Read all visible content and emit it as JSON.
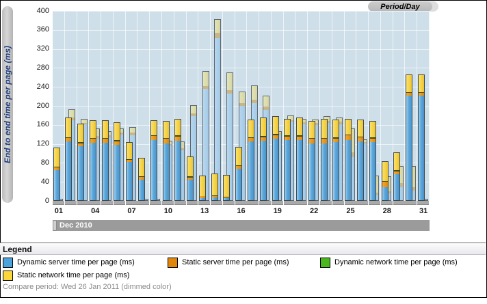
{
  "header": {
    "period_pill_label": "Period/Day"
  },
  "y_axis": {
    "title": "End to end time per page (ms)",
    "min": 0,
    "max": 400,
    "step": 40
  },
  "x_axis": {
    "tick_labels": [
      "01",
      "04",
      "07",
      "10",
      "13",
      "16",
      "19",
      "22",
      "25",
      "28",
      "31"
    ],
    "scrollbar_label": "Dec 2010"
  },
  "legend": {
    "title": "Legend",
    "items": [
      {
        "label": "Dynamic server time per page (ms)",
        "color": "#4aa3da",
        "row": 0,
        "x": 4
      },
      {
        "label": "Static server time per page (ms)",
        "color": "#df860b",
        "row": 0,
        "x": 245
      },
      {
        "label": "Dynamic network time per page (ms)",
        "color": "#4cb81f",
        "row": 0,
        "x": 468
      },
      {
        "label": "Static network time per page (ms)",
        "color": "#fcd73a",
        "row": 1,
        "x": 4
      }
    ],
    "compare_note": "Compare period: Wed 26 Jan 2011 (dimmed color)"
  },
  "colors": {
    "plot_bg": "#cfdfe9",
    "grid": "#e9f2f7",
    "dynamic_server": "#4aa3da",
    "static_server": "#df860b",
    "dynamic_network": "#4cb81f",
    "static_network": "#fcd73a",
    "dim_server": "#a3c9e6",
    "dim_static_server": "#c7b68a",
    "dim_network": "#d6d5a2",
    "scrollbar": "#9b9b9b",
    "axis_title_text": "#223f7a"
  },
  "chart_data": {
    "type": "bar",
    "stacked": true,
    "unit": "ms",
    "title": "End to end time per page (ms) per Period/Day",
    "xlabel": "Period/Day (Dec 2010)",
    "ylabel": "End to end time per page (ms)",
    "ylim": [
      0,
      400
    ],
    "grid": true,
    "categories": [
      "01",
      "02",
      "03",
      "04",
      "05",
      "06",
      "07",
      "08",
      "09",
      "10",
      "11",
      "12",
      "13",
      "14",
      "15",
      "16",
      "17",
      "18",
      "19",
      "20",
      "21",
      "22",
      "23",
      "24",
      "25",
      "26",
      "27",
      "28",
      "29",
      "30",
      "31"
    ],
    "series": [
      {
        "name": "Dynamic server time per page (ms)",
        "values": [
          63,
          124,
          113,
          121,
          121,
          117,
          80,
          43,
          127,
          120,
          125,
          43,
          5,
          6,
          4,
          66,
          123,
          125,
          129,
          126,
          126,
          120,
          120,
          122,
          126,
          123,
          123,
          27,
          54,
          220,
          220
        ]
      },
      {
        "name": "Static server time per page (ms)",
        "values": [
          6,
          7,
          7,
          8,
          8,
          7,
          5,
          6,
          8,
          9,
          9,
          5,
          3,
          3,
          2,
          6,
          8,
          8,
          8,
          8,
          8,
          9,
          9,
          8,
          10,
          9,
          7,
          12,
          7,
          6,
          6
        ]
      },
      {
        "name": "Dynamic network time per page (ms)",
        "values": [
          2,
          2,
          2,
          2,
          2,
          2,
          2,
          2,
          2,
          2,
          2,
          2,
          1,
          1,
          1,
          2,
          2,
          2,
          2,
          2,
          2,
          2,
          2,
          2,
          2,
          2,
          2,
          2,
          2,
          2,
          2
        ]
      },
      {
        "name": "Static network time per page (ms)",
        "values": [
          39,
          40,
          38,
          36,
          36,
          37,
          34,
          37,
          30,
          35,
          34,
          40,
          41,
          44,
          45,
          37,
          36,
          37,
          36,
          34,
          36,
          35,
          39,
          37,
          32,
          35,
          34,
          39,
          36,
          35,
          35
        ]
      }
    ],
    "compare_period": {
      "label": "Wed 26 Jan 2011",
      "style": "dimmed color",
      "series": [
        {
          "name": "Dynamic server time per page (ms) (dimmed)",
          "values": [
            2,
            168,
            159,
            130,
            132,
            138,
            137,
            2,
            2,
            115,
            105,
            177,
            234,
            341,
            224,
            199,
            204,
            190,
            138,
            165,
            160,
            158,
            162,
            160,
            91,
            120,
            11,
            14,
            28,
            20,
            2
          ]
        },
        {
          "name": "Static server time per page (ms) (dimmed)",
          "values": [
            0,
            6,
            4,
            5,
            4,
            4,
            5,
            0,
            0,
            3,
            5,
            6,
            7,
            11,
            8,
            6,
            8,
            7,
            3,
            4,
            4,
            4,
            5,
            5,
            10,
            3,
            5,
            5,
            8,
            8,
            0
          ]
        },
        {
          "name": "Static network time per page (ms) (dimmed)",
          "values": [
            0,
            16,
            7,
            15,
            8,
            8,
            10,
            0,
            0,
            6,
            12,
            16,
            29,
            28,
            35,
            22,
            28,
            22,
            3,
            8,
            6,
            7,
            9,
            8,
            48,
            4,
            35,
            30,
            34,
            42,
            0
          ]
        }
      ]
    }
  }
}
